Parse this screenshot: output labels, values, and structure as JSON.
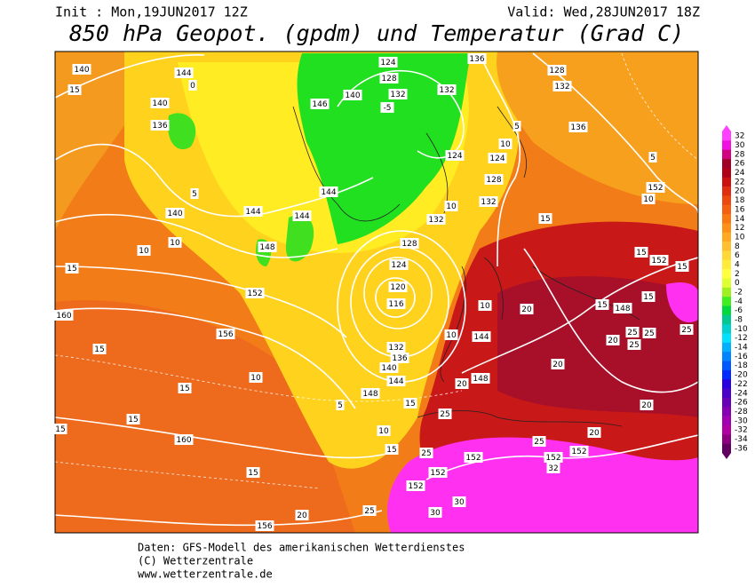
{
  "header": {
    "init": "Init : Mon,19JUN2017 12Z",
    "valid": "Valid: Wed,28JUN2017 18Z",
    "title": "850 hPa Geopot. (gpdm) und Temperatur (Grad C)"
  },
  "colorbar": {
    "levels": [
      32,
      30,
      28,
      26,
      24,
      22,
      20,
      18,
      16,
      14,
      12,
      10,
      8,
      6,
      4,
      2,
      0,
      -2,
      -4,
      -6,
      -8,
      -10,
      -12,
      -14,
      -16,
      -18,
      -20,
      -22,
      -24,
      -26,
      -28,
      -30,
      -32,
      -34,
      -36
    ],
    "colors": [
      "#ff40ff",
      "#f010e0",
      "#d00080",
      "#a00028",
      "#b00018",
      "#cc1010",
      "#e02c10",
      "#ec4810",
      "#f46010",
      "#fa7812",
      "#fe9018",
      "#ffa820",
      "#ffc030",
      "#ffd838",
      "#ffec38",
      "#ffff40",
      "#e0ff30",
      "#a0f020",
      "#40ee20",
      "#00d840",
      "#00c890",
      "#00d0d0",
      "#00e0ff",
      "#00b0ff",
      "#0084ff",
      "#0058ff",
      "#0028ff",
      "#2a00e0",
      "#4a00c8",
      "#6800b8",
      "#8400b0",
      "#a000b0",
      "#b000a0",
      "#8c0080",
      "#600060"
    ]
  },
  "map": {
    "labels": [
      "140",
      "15",
      "144",
      "140",
      "136",
      "0",
      "5",
      "140",
      "144",
      "148",
      "10",
      "10",
      "15",
      "160",
      "152",
      "156",
      "15",
      "15",
      "10",
      "15",
      "160",
      "15",
      "15",
      "156",
      "20",
      "25",
      "30",
      "152",
      "152",
      "152",
      "25",
      "15",
      "10",
      "148",
      "144",
      "140",
      "136",
      "132",
      "116",
      "120",
      "124",
      "128",
      "132",
      "144",
      "144",
      "146",
      "140",
      "128",
      "124",
      "132",
      "-5",
      "132",
      "136",
      "128",
      "132",
      "136",
      "124",
      "128",
      "124",
      "10",
      "132",
      "10",
      "15",
      "10",
      "152",
      "15",
      "152",
      "15",
      "15",
      "148",
      "15",
      "20",
      "10",
      "144",
      "10",
      "20",
      "20",
      "25",
      "25",
      "25",
      "25",
      "20",
      "20",
      "152",
      "152",
      "32",
      "25",
      "148",
      "20",
      "25",
      "15",
      "5",
      "30",
      "5",
      "5"
    ]
  },
  "footer": {
    "source": "Daten: GFS-Modell des amerikanischen Wetterdienstes",
    "copyright": "(C) Wetterzentrale",
    "url": "www.wetterzentrale.de"
  }
}
